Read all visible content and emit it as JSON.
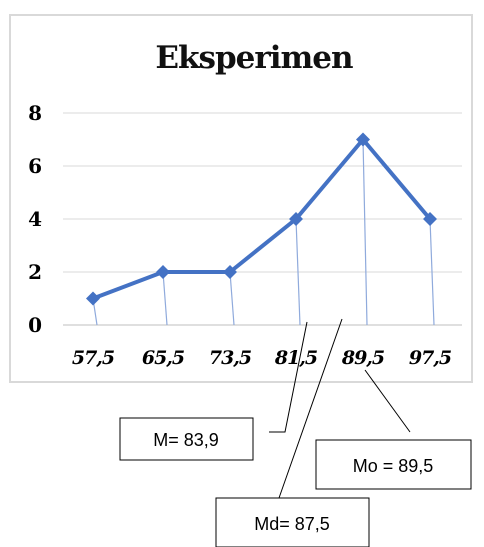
{
  "chart_data": {
    "type": "line",
    "title": "Eksperimen",
    "xlabel": "",
    "ylabel": "",
    "categories": [
      "57,5",
      "65,5",
      "73,5",
      "81,5",
      "89,5",
      "97,5"
    ],
    "values": [
      1,
      2,
      2,
      4,
      7,
      4
    ],
    "yticks": [
      "0",
      "2",
      "4",
      "6",
      "8"
    ],
    "ylim": [
      0,
      8
    ],
    "grid": true,
    "legend": "none",
    "colors": {
      "line": "#4472C4",
      "drop_line": "#8FAADC",
      "grid": "#D9D9D9",
      "frame": "#D9D9D9"
    }
  },
  "callouts": {
    "mean": "M= 83,9",
    "mode": "Mo = 89,5",
    "median": "Md= 87,5"
  }
}
